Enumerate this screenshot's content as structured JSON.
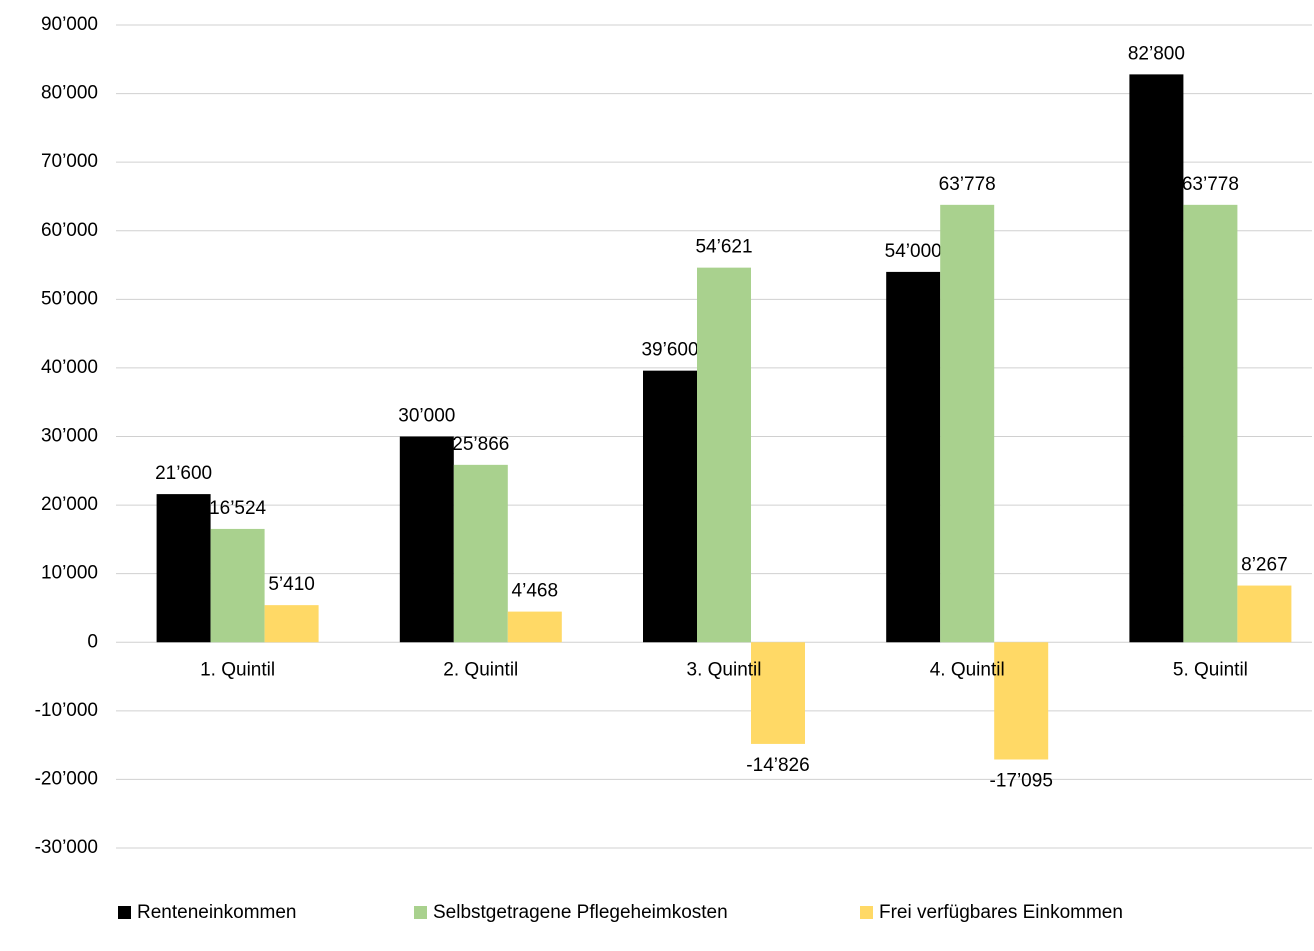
{
  "chart_data": {
    "type": "bar",
    "categories": [
      "1. Quintil",
      "2. Quintil",
      "3. Quintil",
      "4. Quintil",
      "5. Quintil"
    ],
    "series": [
      {
        "name": "Renteneinkommen",
        "color": "#000000",
        "values": [
          21600,
          30000,
          39600,
          54000,
          82800
        ],
        "value_labels": [
          "21’600",
          "30’000",
          "39’600",
          "54’000",
          "82’800"
        ]
      },
      {
        "name": "Selbstgetragene Pflegeheimkosten",
        "color": "#a9d18e",
        "values": [
          16524,
          25866,
          54621,
          63778,
          63778
        ],
        "value_labels": [
          "16’524",
          "25’866",
          "54’621",
          "63’778",
          "63’778"
        ]
      },
      {
        "name": "Frei verfügbares Einkommen",
        "color": "#ffd966",
        "values": [
          5410,
          4468,
          -14826,
          -17095,
          8267
        ],
        "value_labels": [
          "5’410",
          "4’468",
          "-14’826",
          "-17’095",
          "8’267"
        ]
      }
    ],
    "ylim": [
      -30000,
      90000
    ],
    "yticks": [
      {
        "value": -30000,
        "label": "-30’000"
      },
      {
        "value": -20000,
        "label": "-20’000"
      },
      {
        "value": -10000,
        "label": "-10’000"
      },
      0,
      {
        "value": 10000,
        "label": "10’000"
      },
      {
        "value": 20000,
        "label": "20’000"
      },
      {
        "value": 30000,
        "label": "30’000"
      },
      {
        "value": 40000,
        "label": "40’000"
      },
      {
        "value": 50000,
        "label": "50’000"
      },
      {
        "value": 60000,
        "label": "60’000"
      },
      {
        "value": 70000,
        "label": "70’000"
      },
      {
        "value": 80000,
        "label": "80’000"
      },
      {
        "value": 90000,
        "label": "90’000"
      }
    ],
    "grid": true,
    "legend": "bottom"
  }
}
